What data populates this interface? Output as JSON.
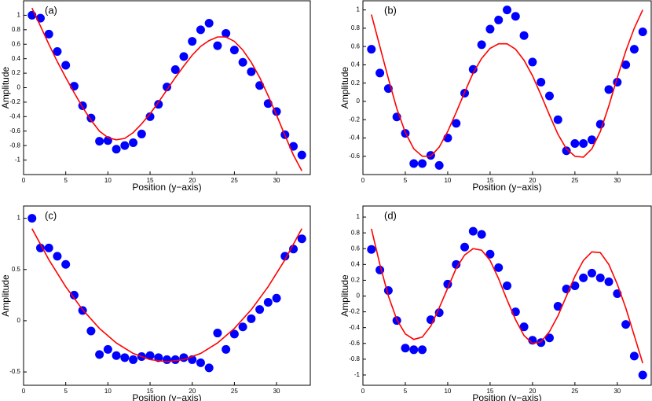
{
  "chart_data": [
    {
      "type": "scatter",
      "annotation": "(a)",
      "xlabel": "Position (y−axis)",
      "ylabel": "Amplitude",
      "xlim": [
        0,
        34
      ],
      "xticks": [
        0,
        5,
        10,
        15,
        20,
        25,
        30
      ],
      "ylim": [
        -1.2,
        1.2
      ],
      "yticks": [
        -1,
        -0.8,
        -0.6,
        -0.4,
        -0.2,
        0,
        0.2,
        0.4,
        0.6,
        0.8,
        1
      ],
      "series": [
        {
          "color": "#0000ff",
          "style": "marker",
          "x": [
            1,
            2,
            3,
            4,
            5,
            6,
            7,
            8,
            9,
            10,
            11,
            12,
            13,
            14,
            15,
            16,
            17,
            18,
            19,
            20,
            21,
            22,
            23,
            24,
            25,
            26,
            27,
            28,
            29,
            30,
            31,
            32,
            33
          ],
          "values": [
            1.0,
            0.96,
            0.74,
            0.5,
            0.31,
            0.02,
            -0.25,
            -0.42,
            -0.74,
            -0.73,
            -0.85,
            -0.8,
            -0.76,
            -0.64,
            -0.4,
            -0.23,
            0.01,
            0.25,
            0.43,
            0.64,
            0.8,
            0.89,
            0.58,
            0.75,
            0.52,
            0.35,
            0.22,
            0.03,
            -0.22,
            -0.33,
            -0.65,
            -0.81,
            -0.93
          ]
        },
        {
          "color": "#ff0000",
          "style": "line",
          "x": [
            1,
            2,
            3,
            4,
            5,
            6,
            7,
            8,
            9,
            10,
            11,
            12,
            13,
            14,
            15,
            16,
            17,
            18,
            19,
            20,
            21,
            22,
            23,
            24,
            25,
            26,
            27,
            28,
            29,
            30,
            31,
            32,
            33
          ],
          "values": [
            1.1,
            0.85,
            0.6,
            0.36,
            0.14,
            -0.07,
            -0.27,
            -0.45,
            -0.6,
            -0.69,
            -0.72,
            -0.7,
            -0.62,
            -0.5,
            -0.36,
            -0.2,
            -0.03,
            0.14,
            0.3,
            0.45,
            0.57,
            0.65,
            0.7,
            0.7,
            0.64,
            0.52,
            0.35,
            0.14,
            -0.11,
            -0.38,
            -0.66,
            -0.93,
            -1.15
          ]
        }
      ]
    },
    {
      "type": "scatter",
      "annotation": "(b)",
      "xlabel": "Position (y−axis)",
      "ylabel": "Amplitude",
      "xlim": [
        0,
        34
      ],
      "xticks": [
        0,
        5,
        10,
        15,
        20,
        25,
        30
      ],
      "ylim": [
        -0.8,
        1.1
      ],
      "yticks": [
        -0.6,
        -0.4,
        -0.2,
        0,
        0.2,
        0.4,
        0.6,
        0.8,
        1
      ],
      "series": [
        {
          "color": "#0000ff",
          "style": "marker",
          "x": [
            1,
            2,
            3,
            4,
            5,
            6,
            7,
            8,
            9,
            10,
            11,
            12,
            13,
            14,
            15,
            16,
            17,
            18,
            19,
            20,
            21,
            22,
            23,
            24,
            25,
            26,
            27,
            28,
            29,
            30,
            31,
            32,
            33
          ],
          "values": [
            0.57,
            0.31,
            0.14,
            -0.17,
            -0.35,
            -0.68,
            -0.68,
            -0.59,
            -0.7,
            -0.4,
            -0.24,
            0.09,
            0.35,
            0.62,
            0.79,
            0.89,
            1.0,
            0.93,
            0.72,
            0.43,
            0.21,
            0.06,
            -0.2,
            -0.54,
            -0.46,
            -0.46,
            -0.42,
            -0.25,
            0.13,
            0.21,
            0.4,
            0.57,
            0.76
          ]
        },
        {
          "color": "#ff0000",
          "style": "line",
          "x": [
            1,
            2,
            3,
            4,
            5,
            6,
            7,
            8,
            9,
            10,
            11,
            12,
            13,
            14,
            15,
            16,
            17,
            18,
            19,
            20,
            21,
            22,
            23,
            24,
            25,
            26,
            27,
            28,
            29,
            30,
            31,
            32,
            33
          ],
          "values": [
            0.95,
            0.6,
            0.25,
            -0.08,
            -0.34,
            -0.52,
            -0.6,
            -0.6,
            -0.5,
            -0.33,
            -0.12,
            0.1,
            0.31,
            0.47,
            0.58,
            0.63,
            0.63,
            0.57,
            0.45,
            0.28,
            0.07,
            -0.15,
            -0.36,
            -0.52,
            -0.6,
            -0.61,
            -0.52,
            -0.33,
            -0.05,
            0.26,
            0.55,
            0.8,
            1.0
          ]
        }
      ]
    },
    {
      "type": "scatter",
      "annotation": "(c)",
      "xlabel": "Position (y−axis)",
      "ylabel": "Amplitude",
      "xlim": [
        0,
        34
      ],
      "xticks": [
        0,
        5,
        10,
        15,
        20,
        25,
        30
      ],
      "ylim": [
        -0.63,
        1.12
      ],
      "yticks": [
        -0.5,
        0,
        0.5,
        1
      ],
      "series": [
        {
          "color": "#0000ff",
          "style": "marker",
          "x": [
            1,
            2,
            3,
            4,
            5,
            6,
            7,
            8,
            9,
            10,
            11,
            12,
            13,
            14,
            15,
            16,
            17,
            18,
            19,
            20,
            21,
            22,
            23,
            24,
            25,
            26,
            27,
            28,
            29,
            30,
            31,
            32,
            33
          ],
          "values": [
            1.0,
            0.71,
            0.71,
            0.63,
            0.55,
            0.25,
            0.1,
            -0.1,
            -0.33,
            -0.28,
            -0.34,
            -0.36,
            -0.38,
            -0.35,
            -0.34,
            -0.36,
            -0.38,
            -0.38,
            -0.36,
            -0.38,
            -0.41,
            -0.46,
            -0.12,
            -0.28,
            -0.13,
            -0.06,
            0.02,
            0.11,
            0.18,
            0.22,
            0.63,
            0.7,
            0.8
          ]
        },
        {
          "color": "#ff0000",
          "style": "line",
          "x": [
            1,
            3,
            5,
            7,
            9,
            11,
            13,
            15,
            17,
            19,
            21,
            23,
            25,
            27,
            29,
            31,
            33
          ],
          "values": [
            0.9,
            0.596,
            0.332,
            0.108,
            -0.075,
            -0.217,
            -0.319,
            -0.38,
            -0.4,
            -0.38,
            -0.319,
            -0.217,
            -0.075,
            0.108,
            0.332,
            0.596,
            0.9
          ]
        }
      ]
    },
    {
      "type": "scatter",
      "annotation": "(d)",
      "xlabel": "Position (y−axis)",
      "ylabel": "Amplitude",
      "xlim": [
        0,
        34
      ],
      "xticks": [
        0,
        5,
        10,
        15,
        20,
        25,
        30
      ],
      "ylim": [
        -1.13,
        1.14
      ],
      "yticks": [
        -1,
        -0.8,
        -0.6,
        -0.4,
        -0.2,
        0,
        0.2,
        0.4,
        0.6,
        0.8,
        1
      ],
      "series": [
        {
          "color": "#0000ff",
          "style": "marker",
          "x": [
            1,
            2,
            3,
            4,
            5,
            6,
            7,
            8,
            9,
            10,
            11,
            12,
            13,
            14,
            15,
            16,
            17,
            18,
            19,
            20,
            21,
            22,
            23,
            24,
            25,
            26,
            27,
            28,
            29,
            30,
            31,
            32,
            33
          ],
          "values": [
            0.59,
            0.33,
            0.07,
            -0.31,
            -0.66,
            -0.68,
            -0.68,
            -0.3,
            -0.21,
            0.15,
            0.4,
            0.62,
            0.82,
            0.78,
            0.53,
            0.36,
            0.13,
            -0.2,
            -0.39,
            -0.56,
            -0.59,
            -0.53,
            -0.13,
            0.09,
            0.13,
            0.23,
            0.29,
            0.23,
            0.18,
            0.03,
            -0.36,
            -0.76,
            -1.0
          ]
        },
        {
          "color": "#ff0000",
          "style": "line",
          "x": [
            1,
            2,
            3,
            4,
            5,
            6,
            7,
            8,
            9,
            10,
            11,
            12,
            13,
            14,
            15,
            16,
            17,
            18,
            19,
            20,
            21,
            22,
            23,
            24,
            25,
            26,
            27,
            28,
            29,
            30,
            31,
            32,
            33
          ],
          "values": [
            0.85,
            0.4,
            0.0,
            -0.3,
            -0.48,
            -0.55,
            -0.52,
            -0.38,
            -0.15,
            0.1,
            0.35,
            0.52,
            0.6,
            0.58,
            0.45,
            0.22,
            -0.05,
            -0.3,
            -0.5,
            -0.6,
            -0.58,
            -0.45,
            -0.25,
            0.0,
            0.25,
            0.45,
            0.56,
            0.55,
            0.4,
            0.15,
            -0.15,
            -0.5,
            -0.85
          ]
        }
      ]
    }
  ]
}
